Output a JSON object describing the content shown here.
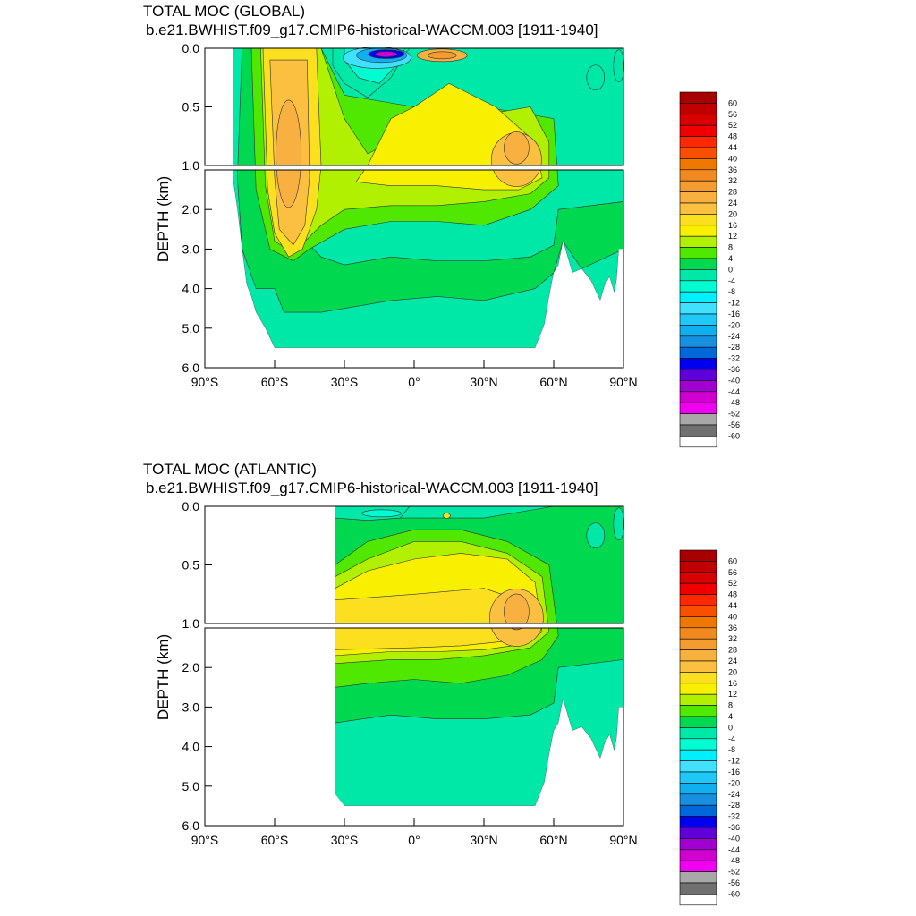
{
  "chart_data": [
    {
      "type": "heatmap",
      "title": "TOTAL MOC (GLOBAL)",
      "subtitle": "b.e21.BWHIST.f09_g17.CMIP6-historical-WACCM.003 [1911-1940]",
      "ylabel": "DEPTH (km)",
      "xlim": [
        -90,
        90
      ],
      "ylim": [
        6.0,
        0.0
      ],
      "x_ticks": [
        "90°S",
        "60°S",
        "30°S",
        "0°",
        "30°N",
        "60°N",
        "90°N"
      ],
      "y_ticks_upper": [
        "0.0",
        "0.5",
        "1.0"
      ],
      "y_ticks_lower": [
        "2.0",
        "3.0",
        "4.0",
        "5.0",
        "6.0"
      ],
      "ocean_extent_lat": [
        -78,
        90
      ],
      "features": [
        {
          "region": "60°S–45°S, 0–3.2 km",
          "value": 20
        },
        {
          "region": "20°S–0°, surface",
          "value": -48
        },
        {
          "region": "10°N–20°N, surface",
          "value": 28
        },
        {
          "region": "40°N–50°N, 0.5–1.5 km",
          "value": 20
        },
        {
          "region": "bottom water, 30°S–50°N, 3.5–5.5 km",
          "value": -4
        }
      ]
    },
    {
      "type": "heatmap",
      "title": "TOTAL MOC (ATLANTIC)",
      "subtitle": "b.e21.BWHIST.f09_g17.CMIP6-historical-WACCM.003 [1911-1940]",
      "ylabel": "DEPTH (km)",
      "xlim": [
        -90,
        90
      ],
      "ylim": [
        6.0,
        0.0
      ],
      "x_ticks": [
        "90°S",
        "60°S",
        "30°S",
        "0°",
        "30°N",
        "60°N",
        "90°N"
      ],
      "y_ticks_upper": [
        "0.0",
        "0.5",
        "1.0"
      ],
      "y_ticks_lower": [
        "2.0",
        "3.0",
        "4.0",
        "5.0",
        "6.0"
      ],
      "ocean_extent_lat": [
        -34,
        90
      ],
      "features": [
        {
          "region": "0°–40°N, 0.3–1.5 km",
          "value": 16
        },
        {
          "region": "40°N–50°N, 0.5–1.2 km",
          "value": 20
        },
        {
          "region": "surface, 25°S–0°",
          "value": -4
        },
        {
          "region": "bottom water, 30°S–45°N, 3.5–5.5 km",
          "value": -4
        }
      ]
    }
  ],
  "colorbar": {
    "labels": [
      "60",
      "56",
      "52",
      "48",
      "44",
      "40",
      "36",
      "32",
      "28",
      "24",
      "20",
      "16",
      "12",
      "8",
      "4",
      "0",
      "-4",
      "-8",
      "-12",
      "-16",
      "-20",
      "-24",
      "-28",
      "-32",
      "-36",
      "-40",
      "-44",
      "-48",
      "-52",
      "-56",
      "-60"
    ],
    "colors": [
      "#a80000",
      "#c00000",
      "#d80000",
      "#f00000",
      "#ff2800",
      "#f84f00",
      "#f07800",
      "#f08a20",
      "#f49c30",
      "#f8b040",
      "#fcc040",
      "#fce020",
      "#f8f000",
      "#b0f000",
      "#50e800",
      "#00d850",
      "#00e8a8",
      "#00fcd0",
      "#00f0ff",
      "#40e0ff",
      "#20c8f8",
      "#10b0f0",
      "#1890e0",
      "#0068d8",
      "#0000f0",
      "#6000d8",
      "#a000d0",
      "#d000d0",
      "#f000f0",
      "#a8a8a8",
      "#707070",
      "#ffffff"
    ]
  }
}
